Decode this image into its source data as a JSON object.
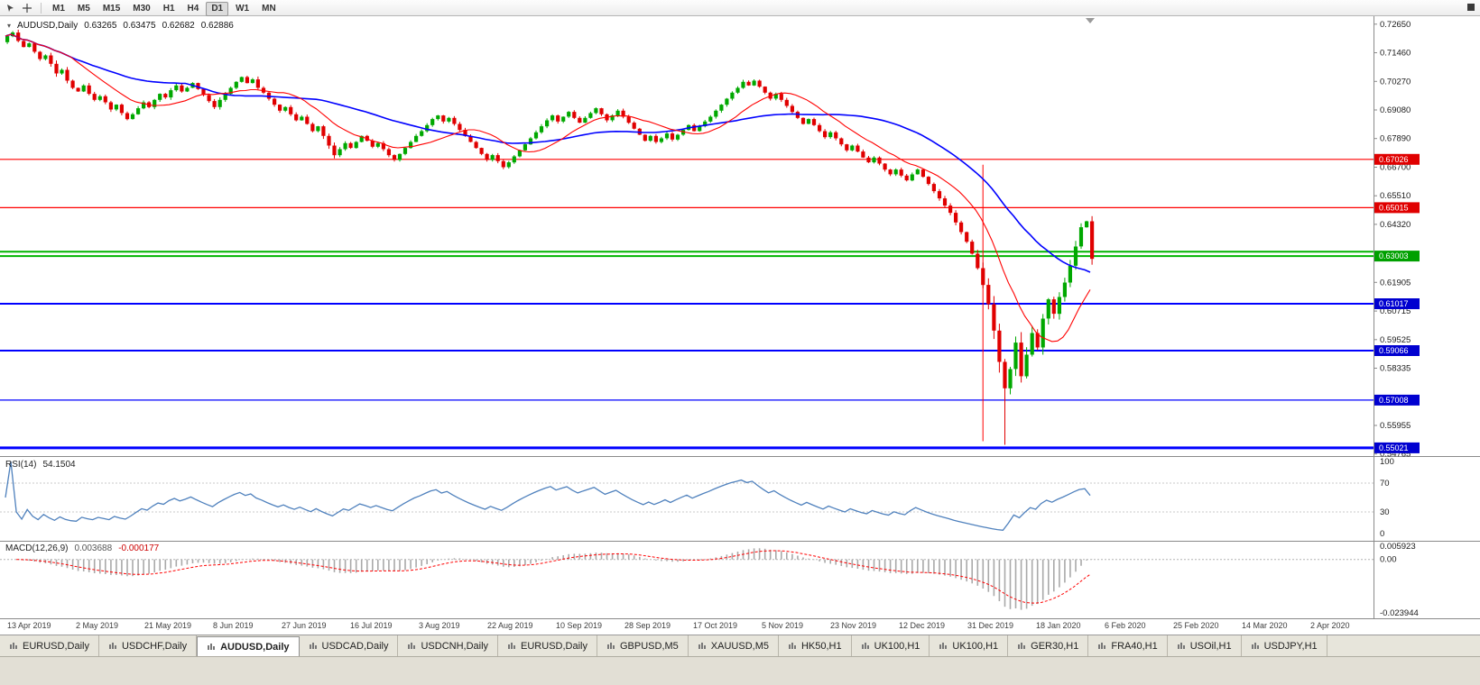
{
  "toolbar": {
    "timeframes": [
      "M1",
      "M5",
      "M15",
      "M30",
      "H1",
      "H4",
      "D1",
      "W1",
      "MN"
    ],
    "active_timeframe": "D1"
  },
  "symbol_line": {
    "marker": "▾",
    "symbol": "AUDUSD,Daily",
    "open": "0.63265",
    "high": "0.63475",
    "low": "0.62682",
    "close": "0.62886"
  },
  "price_axis": {
    "ticks": [
      0.7265,
      0.7146,
      0.7027,
      0.6908,
      0.6789,
      0.667,
      0.6551,
      0.6432,
      0.61905,
      0.60715,
      0.59525,
      0.58335,
      0.55955,
      0.54765
    ]
  },
  "rsi_panel": {
    "name": "RSI(14)",
    "value": "54.1504",
    "levels": [
      100,
      70,
      30,
      0
    ],
    "line_color": "#4f81bd"
  },
  "macd_panel": {
    "name": "MACD(12,26,9)",
    "main": "0.003688",
    "signal": "-0.000177",
    "axis": [
      {
        "label": "0.005923",
        "value": 0.005923
      },
      {
        "label": "0.00",
        "value": 0
      },
      {
        "label": "-0.023944",
        "value": -0.023944
      }
    ],
    "hist_color": "#a9a9a9",
    "signal_color": "#ff0000"
  },
  "dates": [
    "13 Apr 2019",
    "2 May 2019",
    "21 May 2019",
    "8 Jun 2019",
    "27 Jun 2019",
    "16 Jul 2019",
    "3 Aug 2019",
    "22 Aug 2019",
    "10 Sep 2019",
    "28 Sep 2019",
    "17 Oct 2019",
    "5 Nov 2019",
    "23 Nov 2019",
    "12 Dec 2019",
    "31 Dec 2019",
    "18 Jan 2020",
    "6 Feb 2020",
    "25 Feb 2020",
    "14 Mar 2020",
    "2 Apr 2020"
  ],
  "tabs": {
    "active_index": 2,
    "items": [
      "EURUSD,Daily",
      "USDCHF,Daily",
      "AUDUSD,Daily",
      "USDCAD,Daily",
      "USDCNH,Daily",
      "EURUSD,Daily",
      "GBPUSD,M5",
      "XAUUSD,M5",
      "HK50,H1",
      "UK100,H1",
      "UK100,H1",
      "GER30,H1",
      "FRA40,H1",
      "USOil,H1",
      "USDJPY,H1"
    ]
  },
  "chart_data": {
    "type": "candlestick",
    "symbol": "AUDUSD",
    "timeframe": "Daily",
    "price_range": {
      "top": 0.7298,
      "bottom": 0.5468
    },
    "first_open": 0.719,
    "closes": [
      0.7215,
      0.723,
      0.7195,
      0.717,
      0.7185,
      0.715,
      0.712,
      0.7135,
      0.71,
      0.706,
      0.7075,
      0.703,
      0.7,
      0.6985,
      0.701,
      0.6975,
      0.695,
      0.6965,
      0.694,
      0.691,
      0.693,
      0.6895,
      0.687,
      0.689,
      0.6915,
      0.694,
      0.692,
      0.695,
      0.6975,
      0.696,
      0.699,
      0.701,
      0.6985,
      0.7,
      0.702,
      0.6995,
      0.697,
      0.6945,
      0.692,
      0.695,
      0.6975,
      0.7,
      0.7025,
      0.7045,
      0.702,
      0.7035,
      0.7,
      0.698,
      0.6955,
      0.693,
      0.6905,
      0.692,
      0.689,
      0.6865,
      0.688,
      0.685,
      0.682,
      0.684,
      0.68,
      0.676,
      0.672,
      0.6745,
      0.677,
      0.675,
      0.6775,
      0.68,
      0.678,
      0.6755,
      0.677,
      0.6745,
      0.672,
      0.67,
      0.6725,
      0.675,
      0.6775,
      0.68,
      0.682,
      0.6845,
      0.687,
      0.6885,
      0.686,
      0.6875,
      0.685,
      0.6825,
      0.68,
      0.6775,
      0.675,
      0.6725,
      0.67,
      0.672,
      0.6695,
      0.667,
      0.669,
      0.6715,
      0.674,
      0.6765,
      0.679,
      0.6815,
      0.684,
      0.6865,
      0.6885,
      0.686,
      0.688,
      0.69,
      0.6875,
      0.6855,
      0.6875,
      0.6895,
      0.6915,
      0.689,
      0.6865,
      0.6885,
      0.6905,
      0.688,
      0.6855,
      0.683,
      0.6805,
      0.678,
      0.68,
      0.6775,
      0.679,
      0.681,
      0.6785,
      0.6805,
      0.6825,
      0.6845,
      0.682,
      0.684,
      0.686,
      0.688,
      0.6905,
      0.693,
      0.6955,
      0.698,
      0.7,
      0.7025,
      0.701,
      0.703,
      0.7005,
      0.698,
      0.6955,
      0.6975,
      0.695,
      0.6925,
      0.69,
      0.6875,
      0.685,
      0.687,
      0.6845,
      0.682,
      0.6795,
      0.6815,
      0.679,
      0.6765,
      0.674,
      0.676,
      0.6735,
      0.671,
      0.669,
      0.671,
      0.6685,
      0.666,
      0.664,
      0.666,
      0.6635,
      0.6615,
      0.664,
      0.666,
      0.663,
      0.66,
      0.657,
      0.654,
      0.651,
      0.648,
      0.644,
      0.64,
      0.636,
      0.631,
      0.625,
      0.618,
      0.61,
      0.599,
      0.586,
      0.575,
      0.583,
      0.594,
      0.58,
      0.589,
      0.598,
      0.592,
      0.604,
      0.612,
      0.606,
      0.613,
      0.619,
      0.626,
      0.634,
      0.642,
      0.6445,
      0.62886
    ],
    "special_low": {
      "index": 183,
      "price": 0.5515
    },
    "colors": {
      "up": "#00a800",
      "down": "#e00000"
    },
    "ma_fast": {
      "period": 13,
      "color": "#ff0000"
    },
    "ma_slow": {
      "period": 34,
      "color": "#0000ff"
    },
    "hlines": [
      {
        "price": 0.67026,
        "color": "#ff0000",
        "width": 1.2,
        "label": "0.67026",
        "label_bg": "#e00000"
      },
      {
        "price": 0.65015,
        "color": "#ff0000",
        "width": 1.2,
        "label": "0.65015",
        "label_bg": "#e00000"
      },
      {
        "price": 0.6318,
        "color": "#00b400",
        "width": 2,
        "label": null,
        "label_bg": null
      },
      {
        "price": 0.63003,
        "color": "#00b400",
        "width": 2,
        "label": "0.63003",
        "label_bg": "#00a000"
      },
      {
        "price": 0.61017,
        "color": "#0000ff",
        "width": 2,
        "label": "0.61017",
        "label_bg": "#0000d0"
      },
      {
        "price": 0.59066,
        "color": "#0000ff",
        "width": 2,
        "label": "0.59066",
        "label_bg": "#0000d0"
      },
      {
        "price": 0.57008,
        "color": "#0000ff",
        "width": 1.2,
        "label": "0.57008",
        "label_bg": "#0000d0"
      },
      {
        "price": 0.55021,
        "color": "#0000ff",
        "width": 3,
        "label": "0.55021",
        "label_bg": "#0000d0"
      }
    ],
    "vline": {
      "index": 179,
      "from": 0.668,
      "to": 0.553,
      "color": "#ff0000"
    },
    "indicators": {
      "rsi": {
        "period": 14
      },
      "macd": {
        "fast": 12,
        "slow": 26,
        "signal": 9
      }
    }
  }
}
